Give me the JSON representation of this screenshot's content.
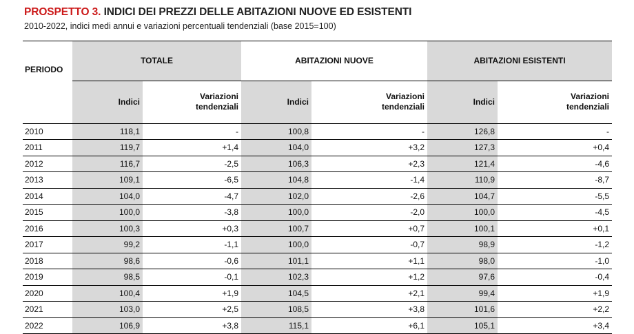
{
  "title": {
    "number": "PROSPETTO 3.",
    "text": " INDICI DEI PREZZI DELLE ABITAZIONI NUOVE ED ESISTENTI"
  },
  "subtitle": "2010-2022, indici medi annui e variazioni percentuali tendenziali (base 2015=100)",
  "table": {
    "period_header": "PERIODO",
    "groups": [
      "TOTALE",
      "ABITAZIONI NUOVE",
      "ABITAZIONI ESISTENTI"
    ],
    "sub_headers": [
      "Indici",
      "Variazioni tendenziali"
    ],
    "rows": [
      {
        "year": "2010",
        "values": [
          "118,1",
          "-",
          "100,8",
          "-",
          "126,8",
          "-"
        ]
      },
      {
        "year": "2011",
        "values": [
          "119,7",
          "+1,4",
          "104,0",
          "+3,2",
          "127,3",
          "+0,4"
        ]
      },
      {
        "year": "2012",
        "values": [
          "116,7",
          "-2,5",
          "106,3",
          "+2,3",
          "121,4",
          "-4,6"
        ]
      },
      {
        "year": "2013",
        "values": [
          "109,1",
          "-6,5",
          "104,8",
          "-1,4",
          "110,9",
          "-8,7"
        ]
      },
      {
        "year": "2014",
        "values": [
          "104,0",
          "-4,7",
          "102,0",
          "-2,6",
          "104,7",
          "-5,5"
        ]
      },
      {
        "year": "2015",
        "values": [
          "100,0",
          "-3,8",
          "100,0",
          "-2,0",
          "100,0",
          "-4,5"
        ]
      },
      {
        "year": "2016",
        "values": [
          "100,3",
          "+0,3",
          "100,7",
          "+0,7",
          "100,1",
          "+0,1"
        ]
      },
      {
        "year": "2017",
        "values": [
          "99,2",
          "-1,1",
          "100,0",
          "-0,7",
          "98,9",
          "-1,2"
        ]
      },
      {
        "year": "2018",
        "values": [
          "98,6",
          "-0,6",
          "101,1",
          "+1,1",
          "98,0",
          "-1,0"
        ]
      },
      {
        "year": "2019",
        "values": [
          "98,5",
          "-0,1",
          "102,3",
          "+1,2",
          "97,6",
          "-0,4"
        ]
      },
      {
        "year": "2020",
        "values": [
          "100,4",
          "+1,9",
          "104,5",
          "+2,1",
          "99,4",
          "+1,9"
        ]
      },
      {
        "year": "2021",
        "values": [
          "103,0",
          "+2,5",
          "108,5",
          "+3,8",
          "101,6",
          "+2,2"
        ]
      },
      {
        "year": "2022",
        "values": [
          "106,9",
          "+3,8",
          "115,1",
          "+6,1",
          "105,1",
          "+3,4"
        ]
      }
    ]
  },
  "colors": {
    "accent": "#cc1a1a",
    "shade": "#d9d9d9"
  }
}
